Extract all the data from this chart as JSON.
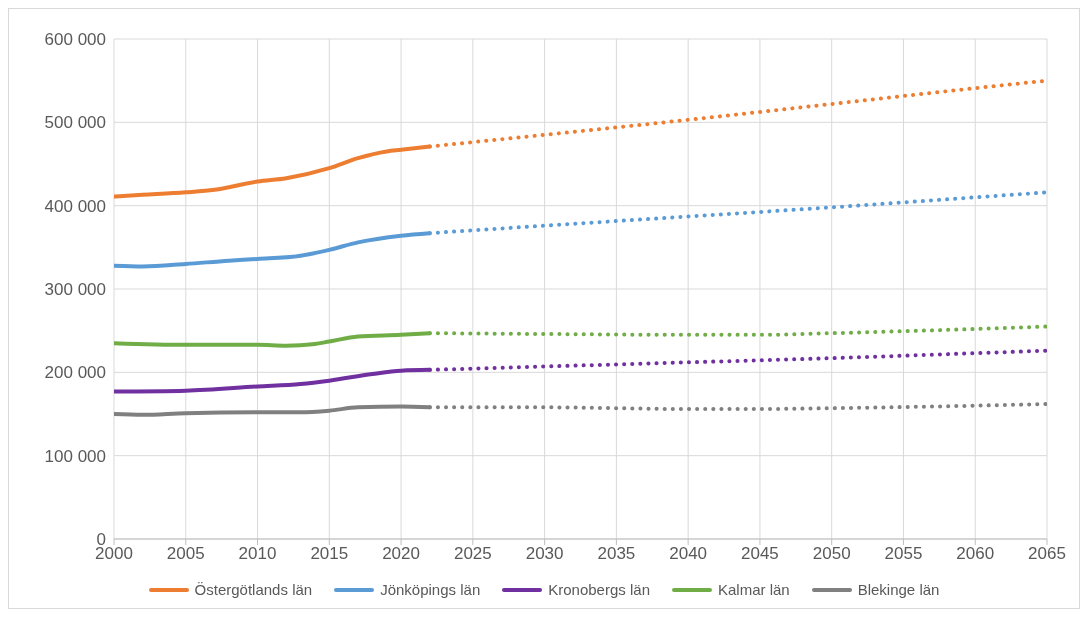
{
  "chart_data": {
    "type": "line",
    "xlim": [
      2000,
      2065
    ],
    "xticks": [
      2000,
      2005,
      2010,
      2015,
      2020,
      2025,
      2030,
      2035,
      2040,
      2045,
      2050,
      2055,
      2060,
      2065
    ],
    "ylim": [
      0,
      600000
    ],
    "yticks": [
      {
        "value": 0,
        "label": "0"
      },
      {
        "value": 100000,
        "label": "100 000"
      },
      {
        "value": 200000,
        "label": "200 000"
      },
      {
        "value": 300000,
        "label": "300 000"
      },
      {
        "value": 400000,
        "label": "400 000"
      },
      {
        "value": 500000,
        "label": "500 000"
      },
      {
        "value": 600000,
        "label": "600 000"
      }
    ],
    "grid": true,
    "legend": "bottom",
    "marker": "none",
    "series": [
      {
        "name": "Östergötlands län",
        "color": "#ed7d31",
        "line_style": "solid",
        "x": [
          2000,
          2002,
          2005,
          2007,
          2010,
          2012,
          2015,
          2017,
          2019,
          2020,
          2022
        ],
        "values": [
          411000,
          413000,
          416000,
          419000,
          429000,
          433000,
          445000,
          457000,
          465000,
          467000,
          471000
        ]
      },
      {
        "color": "#ed7d31",
        "line_style": "dotted",
        "x": [
          2022,
          2030,
          2040,
          2050,
          2060,
          2065
        ],
        "values": [
          471000,
          485000,
          503000,
          522000,
          541000,
          550000
        ]
      },
      {
        "name": "Jönköpings län",
        "color": "#5b9bd5",
        "line_style": "solid",
        "x": [
          2000,
          2002,
          2005,
          2008,
          2010,
          2013,
          2015,
          2017,
          2020,
          2022
        ],
        "values": [
          328000,
          327000,
          330000,
          334000,
          336000,
          340000,
          347000,
          356000,
          364000,
          367000
        ]
      },
      {
        "color": "#5b9bd5",
        "line_style": "dotted",
        "x": [
          2022,
          2030,
          2040,
          2050,
          2060,
          2065
        ],
        "values": [
          367000,
          376000,
          387000,
          398000,
          410000,
          416000
        ]
      },
      {
        "name": "Kronobergs län",
        "color": "#7030a0",
        "line_style": "solid",
        "x": [
          2000,
          2005,
          2010,
          2013,
          2015,
          2018,
          2020,
          2022
        ],
        "values": [
          177000,
          178000,
          183000,
          186000,
          190000,
          198000,
          202000,
          203000
        ]
      },
      {
        "color": "#7030a0",
        "line_style": "dotted",
        "x": [
          2022,
          2030,
          2040,
          2050,
          2060,
          2065
        ],
        "values": [
          203000,
          207000,
          212000,
          217000,
          223000,
          226000
        ]
      },
      {
        "name": "Kalmar län",
        "color": "#70ad47",
        "line_style": "solid",
        "x": [
          2000,
          2005,
          2010,
          2012,
          2014,
          2015,
          2017,
          2020,
          2022
        ],
        "values": [
          235000,
          233000,
          233000,
          232000,
          234000,
          237000,
          243000,
          245000,
          247000
        ]
      },
      {
        "color": "#70ad47",
        "line_style": "dotted",
        "x": [
          2022,
          2030,
          2040,
          2045,
          2050,
          2060,
          2065
        ],
        "values": [
          247000,
          246000,
          245000,
          245000,
          247000,
          252000,
          255000
        ]
      },
      {
        "name": "Blekinge län",
        "color": "#808080",
        "line_style": "solid",
        "x": [
          2000,
          2002,
          2005,
          2010,
          2013,
          2015,
          2017,
          2020,
          2022
        ],
        "values": [
          150000,
          149000,
          151000,
          152000,
          152000,
          154000,
          158000,
          159000,
          158000
        ]
      },
      {
        "color": "#808080",
        "line_style": "dotted",
        "x": [
          2022,
          2030,
          2040,
          2045,
          2050,
          2060,
          2065
        ],
        "values": [
          158000,
          158000,
          156000,
          156000,
          157000,
          160000,
          162000
        ]
      }
    ]
  }
}
